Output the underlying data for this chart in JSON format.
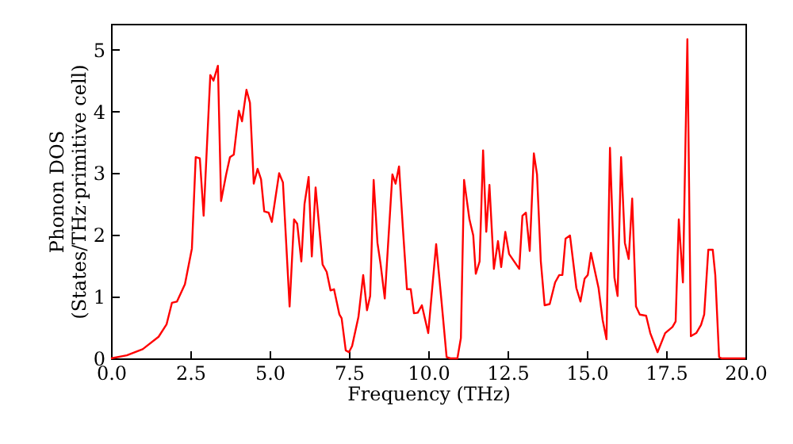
{
  "chart_data": {
    "type": "line",
    "xlabel": "Frequency (THz)",
    "ylabel": "Phonon DOS\n(States/THz·primitive cell)",
    "x": [
      0,
      0.5,
      1.0,
      1.5,
      1.75,
      1.92,
      2.08,
      2.33,
      2.55,
      2.67,
      2.8,
      2.92,
      3.13,
      3.23,
      3.37,
      3.47,
      3.63,
      3.75,
      3.87,
      4.03,
      4.13,
      4.27,
      4.38,
      4.5,
      4.62,
      4.73,
      4.83,
      4.97,
      5.07,
      5.3,
      5.42,
      5.63,
      5.77,
      5.87,
      6.0,
      6.1,
      6.23,
      6.33,
      6.45,
      6.67,
      6.8,
      6.92,
      7.03,
      7.2,
      7.27,
      7.4,
      7.5,
      7.6,
      7.8,
      7.95,
      8.07,
      8.17,
      8.28,
      8.4,
      8.5,
      8.63,
      8.87,
      8.97,
      9.08,
      9.2,
      9.33,
      9.45,
      9.55,
      9.67,
      9.8,
      10.0,
      10.25,
      10.42,
      10.58,
      10.7,
      10.92,
      11.03,
      11.13,
      11.3,
      11.42,
      11.5,
      11.62,
      11.73,
      11.83,
      11.93,
      12.07,
      12.2,
      12.3,
      12.43,
      12.55,
      12.87,
      12.97,
      13.08,
      13.2,
      13.33,
      13.43,
      13.55,
      13.67,
      13.83,
      14.0,
      14.13,
      14.23,
      14.33,
      14.47,
      14.67,
      14.8,
      14.93,
      15.03,
      15.13,
      15.37,
      15.5,
      15.62,
      15.73,
      15.87,
      15.97,
      16.08,
      16.2,
      16.32,
      16.43,
      16.55,
      16.67,
      16.87,
      17.0,
      17.23,
      17.47,
      17.7,
      17.8,
      17.9,
      18.03,
      18.17,
      18.28,
      18.45,
      18.6,
      18.7,
      18.83,
      18.97,
      19.05,
      19.17,
      19.25,
      20.0
    ],
    "series": [
      {
        "color": "#ff0000",
        "values": [
          0,
          0.05,
          0.15,
          0.35,
          0.55,
          0.9,
          0.92,
          1.2,
          1.78,
          3.26,
          3.24,
          2.31,
          4.59,
          4.5,
          4.74,
          2.55,
          2.98,
          3.26,
          3.3,
          4.01,
          3.84,
          4.35,
          4.14,
          2.83,
          3.07,
          2.9,
          2.38,
          2.36,
          2.21,
          3.0,
          2.85,
          0.84,
          2.25,
          2.18,
          1.57,
          2.5,
          2.94,
          1.65,
          2.77,
          1.52,
          1.4,
          1.1,
          1.12,
          0.71,
          0.65,
          0.13,
          0.1,
          0.2,
          0.67,
          1.35,
          0.78,
          1.01,
          2.89,
          1.87,
          1.52,
          0.97,
          2.98,
          2.83,
          3.11,
          2.12,
          1.12,
          1.12,
          0.73,
          0.74,
          0.86,
          0.41,
          1.85,
          0.92,
          0.02,
          0,
          0,
          0.33,
          2.89,
          2.25,
          1.99,
          1.37,
          1.57,
          3.37,
          2.05,
          2.81,
          1.45,
          1.9,
          1.48,
          2.05,
          1.69,
          1.45,
          2.31,
          2.36,
          1.74,
          3.32,
          2.98,
          1.57,
          0.86,
          0.88,
          1.23,
          1.35,
          1.35,
          1.94,
          1.99,
          1.14,
          0.92,
          1.29,
          1.35,
          1.71,
          1.14,
          0.62,
          0.31,
          3.41,
          1.31,
          1.01,
          3.26,
          1.87,
          1.61,
          2.59,
          0.84,
          0.71,
          0.69,
          0.41,
          0.1,
          0.41,
          0.51,
          0.6,
          2.25,
          1.23,
          5.17,
          0.36,
          0.41,
          0.54,
          0.71,
          1.76,
          1.76,
          1.35,
          0.02,
          0,
          0
        ]
      }
    ],
    "xlim": [
      0,
      20
    ],
    "xticks": [
      {
        "value": 0,
        "label": "0.0"
      },
      {
        "value": 2.5,
        "label": "2.5"
      },
      {
        "value": 5,
        "label": "5.0"
      },
      {
        "value": 7.5,
        "label": "7.5"
      },
      {
        "value": 10,
        "label": "10.0"
      },
      {
        "value": 12.5,
        "label": "12.5"
      },
      {
        "value": 15,
        "label": "15.0"
      },
      {
        "value": 17.5,
        "label": "17.5"
      },
      {
        "value": 20,
        "label": "20.0"
      }
    ],
    "ylim": [
      0,
      5.42
    ],
    "yticks": [
      0,
      1,
      2,
      3,
      4,
      5
    ],
    "grid": false,
    "line_style": "solid",
    "marker": "none"
  }
}
